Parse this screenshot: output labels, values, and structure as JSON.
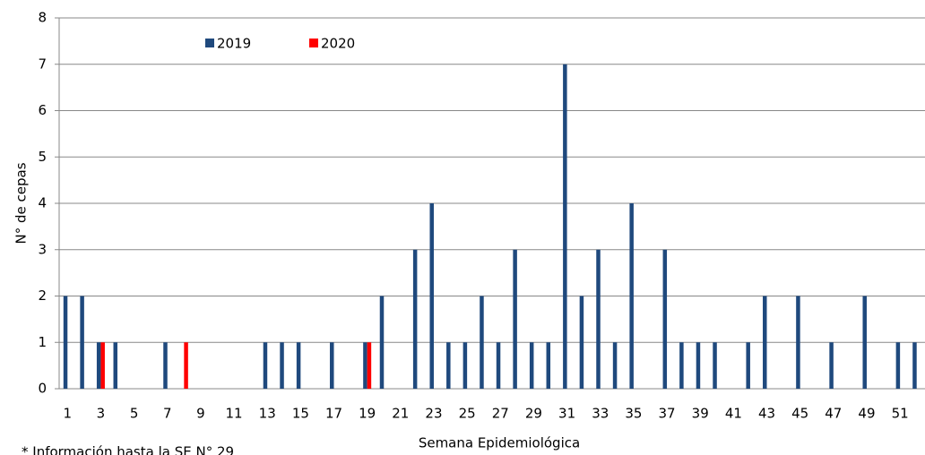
{
  "chart_data": {
    "type": "bar",
    "y_label": "N° de cepas",
    "x_label": "Semana Epidemiológica",
    "note": "* Información hasta la SE N° 29",
    "categories": [
      "1",
      null,
      "3",
      null,
      "5",
      null,
      "7",
      null,
      "9",
      null,
      "11",
      null,
      "13",
      null,
      "15",
      null,
      "17",
      null,
      "19",
      null,
      "21",
      null,
      "23",
      null,
      "25",
      null,
      "27",
      null,
      "29",
      null,
      "31",
      null,
      "33",
      null,
      "35",
      null,
      "37",
      null,
      "39",
      null,
      "41",
      null,
      "43",
      null,
      "45",
      null,
      "47",
      null,
      "49",
      null,
      "51",
      null
    ],
    "series": [
      {
        "name": "2019",
        "color": "#1f497d",
        "values": [
          2,
          2,
          1,
          1,
          0,
          0,
          1,
          0,
          0,
          0,
          0,
          0,
          1,
          1,
          1,
          0,
          1,
          0,
          1,
          2,
          0,
          3,
          4,
          1,
          1,
          2,
          1,
          3,
          1,
          1,
          7,
          2,
          3,
          1,
          4,
          0,
          3,
          1,
          1,
          1,
          0,
          1,
          2,
          0,
          2,
          0,
          1,
          0,
          2,
          0,
          1,
          1
        ]
      },
      {
        "name": "2020",
        "color": "#ff0000",
        "values": [
          0,
          0,
          1,
          0,
          0,
          0,
          0,
          1,
          0,
          0,
          0,
          0,
          0,
          0,
          0,
          0,
          0,
          0,
          1,
          0,
          0,
          0,
          0,
          0,
          0,
          0,
          0,
          0,
          0,
          null,
          null,
          null,
          null,
          null,
          null,
          null,
          null,
          null,
          null,
          null,
          null,
          null,
          null,
          null,
          null,
          null,
          null,
          null,
          null,
          null,
          null,
          null
        ]
      }
    ],
    "ylim": [
      0,
      8
    ],
    "yticks": [
      0,
      1,
      2,
      3,
      4,
      5,
      6,
      7,
      8
    ],
    "grid": true
  }
}
